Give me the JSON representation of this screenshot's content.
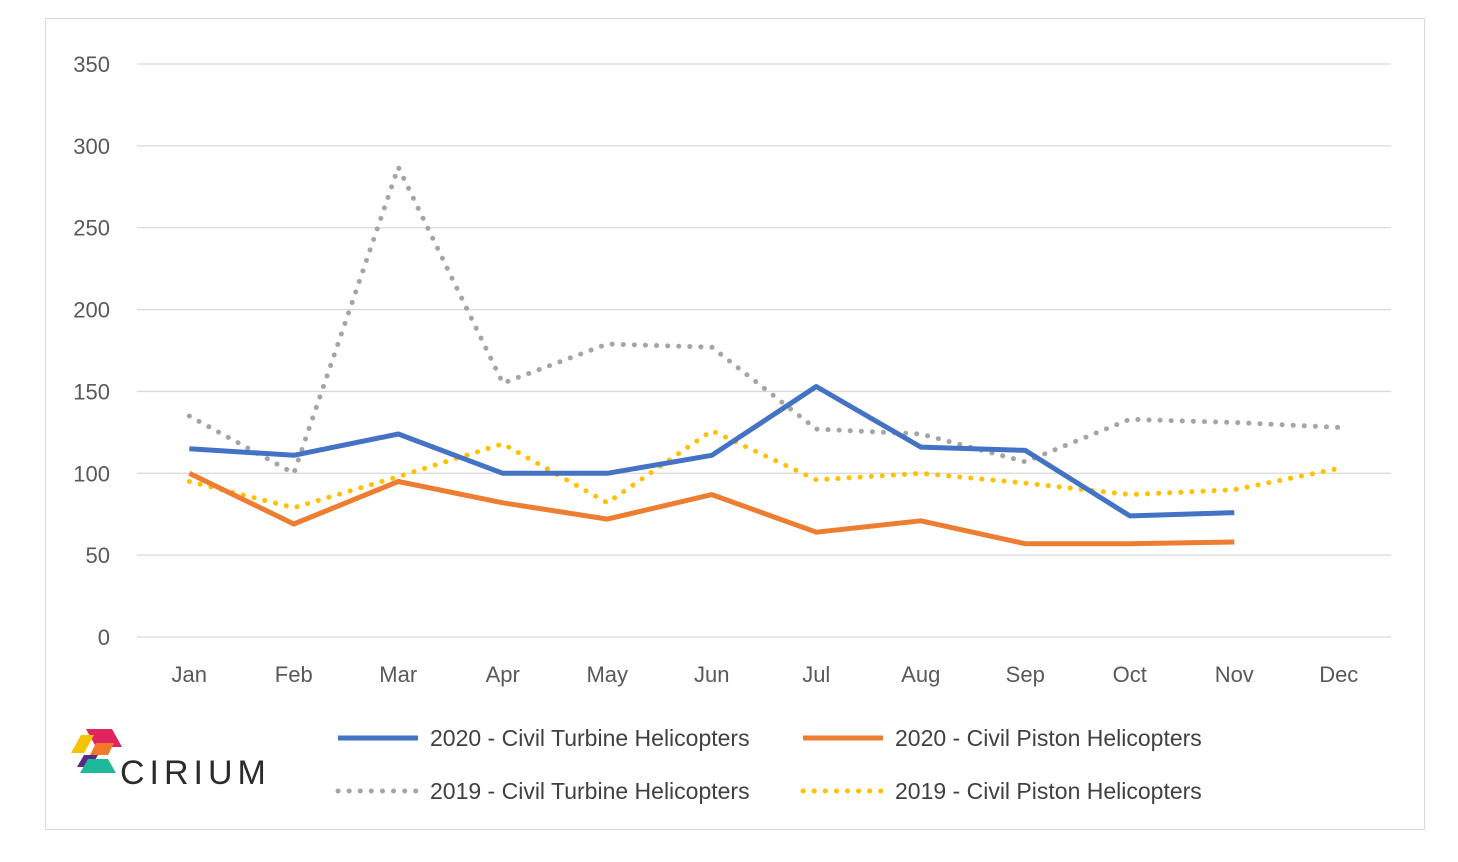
{
  "chart_data": {
    "type": "line",
    "categories": [
      "Jan",
      "Feb",
      "Mar",
      "Apr",
      "May",
      "Jun",
      "Jul",
      "Aug",
      "Sep",
      "Oct",
      "Nov",
      "Dec"
    ],
    "ylim": [
      0,
      350
    ],
    "yticks": [
      0,
      50,
      100,
      150,
      200,
      250,
      300,
      350
    ],
    "grid": true,
    "legend_position": "bottom",
    "series": [
      {
        "name": "2020 - Civil Turbine Helicopters",
        "color": "#4472C4",
        "style": "solid",
        "values": [
          115,
          111,
          124,
          100,
          100,
          111,
          153,
          116,
          114,
          74,
          76,
          null
        ]
      },
      {
        "name": "2020 - Civil Piston Helicopters",
        "color": "#ED7D31",
        "style": "solid",
        "values": [
          100,
          69,
          95,
          82,
          72,
          87,
          64,
          71,
          57,
          57,
          58,
          null
        ]
      },
      {
        "name": "2019 - Civil Turbine Helicopters",
        "color": "#A5A5A5",
        "style": "dotted",
        "values": [
          135,
          100,
          287,
          155,
          179,
          177,
          127,
          124,
          107,
          133,
          131,
          128
        ]
      },
      {
        "name": "2019 - Civil Piston Helicopters",
        "color": "#FFC000",
        "style": "dotted",
        "values": [
          95,
          79,
          98,
          118,
          82,
          126,
          96,
          100,
          94,
          87,
          90,
          103
        ]
      }
    ]
  },
  "logo": {
    "text": "CIRIUM"
  }
}
